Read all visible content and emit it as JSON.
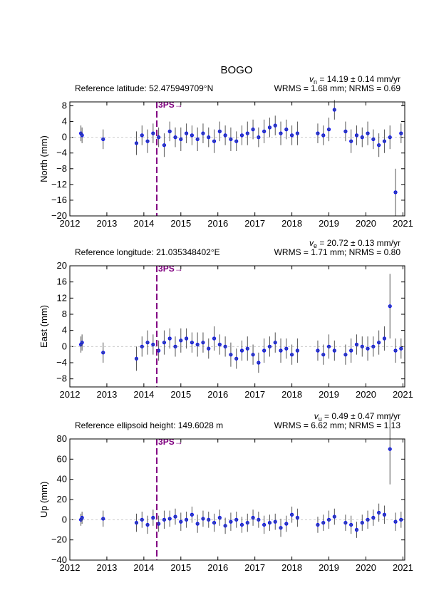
{
  "chart_data": [
    {
      "type": "errorbar",
      "title": "BOGO",
      "velocity": {
        "symbol": "v",
        "subscript": "n",
        "text": " = 14.19 ± 0.14 mm/yr"
      },
      "reference": "Reference latitude: 52.475949709°N",
      "stats": "WRMS = 1.68 mm; NRMS = 0.69",
      "ylabel": "North (mm)",
      "break": {
        "x": 2014.35,
        "label": "3PS→"
      },
      "zero_line": true,
      "xlim": [
        2012,
        2021.05
      ],
      "xticks": [
        2012,
        2013,
        2014,
        2015,
        2016,
        2017,
        2018,
        2019,
        2020,
        2021
      ],
      "ylim": [
        -20,
        9
      ],
      "yticks": [
        8,
        4,
        0,
        {
          "value": -4,
          "label": "−4"
        },
        {
          "value": -8,
          "label": "−8"
        },
        {
          "value": -12,
          "label": "−12"
        },
        {
          "value": -16,
          "label": "−16"
        },
        {
          "value": -20,
          "label": "−20"
        }
      ],
      "series": [
        {
          "color": "#0000ff",
          "error_color": "#555555",
          "x": [
            2012.3,
            2012.33,
            2012.9,
            2013.8,
            2013.95,
            2014.1,
            2014.25,
            2014.4,
            2014.55,
            2014.7,
            2014.85,
            2015.0,
            2015.15,
            2015.3,
            2015.45,
            2015.6,
            2015.75,
            2015.9,
            2016.05,
            2016.2,
            2016.35,
            2016.5,
            2016.65,
            2016.8,
            2016.95,
            2017.1,
            2017.25,
            2017.4,
            2017.55,
            2017.7,
            2017.85,
            2018.0,
            2018.15,
            2018.7,
            2018.85,
            2019.0,
            2019.15,
            2019.45,
            2019.6,
            2019.75,
            2019.9,
            2020.05,
            2020.2,
            2020.35,
            2020.5,
            2020.65,
            2020.8,
            2020.95
          ],
          "values": [
            1,
            0.5,
            -0.5,
            -1.5,
            0.5,
            -1,
            1,
            0,
            -2,
            1.5,
            0,
            -0.5,
            1,
            0.5,
            -0.5,
            1,
            0,
            -1,
            1.5,
            0.5,
            -0.5,
            -1,
            0.5,
            1,
            2,
            0,
            1.5,
            2.5,
            3,
            1,
            2,
            0.5,
            1,
            1,
            0.5,
            2,
            7,
            1.5,
            -1,
            0.5,
            0,
            1,
            -0.5,
            -2,
            -1,
            0,
            -14,
            1
          ],
          "errors": [
            2,
            2,
            2.5,
            3,
            2.5,
            3,
            2.5,
            2.5,
            3,
            2.5,
            2.5,
            3,
            2.5,
            2.5,
            3,
            2.5,
            2.5,
            3,
            2.5,
            2.5,
            3,
            2.5,
            2.5,
            3,
            2.5,
            2.5,
            3,
            2.5,
            2.5,
            3,
            2.5,
            2.5,
            3,
            2.5,
            2.5,
            3,
            2.5,
            2.5,
            3,
            2.5,
            2.5,
            3,
            2.5,
            3,
            3,
            3,
            6,
            2.5
          ]
        }
      ]
    },
    {
      "type": "errorbar",
      "velocity": {
        "symbol": "v",
        "subscript": "e",
        "text": " = 20.72 ± 0.13 mm/yr"
      },
      "reference": "Reference longitude: 21.035348402°E",
      "stats": "WRMS = 1.71 mm; NRMS = 0.80",
      "ylabel": "East (mm)",
      "break": {
        "x": 2014.35,
        "label": "3PS→"
      },
      "zero_line": true,
      "xlim": [
        2012,
        2021.05
      ],
      "xticks": [
        2012,
        2013,
        2014,
        2015,
        2016,
        2017,
        2018,
        2019,
        2020,
        2021
      ],
      "ylim": [
        -10,
        20
      ],
      "yticks": [
        20,
        16,
        12,
        8,
        4,
        0,
        {
          "value": -4,
          "label": "−4"
        },
        {
          "value": -8,
          "label": "−8"
        }
      ],
      "series": [
        {
          "color": "#0000ff",
          "error_color": "#555555",
          "x": [
            2012.3,
            2012.33,
            2012.9,
            2013.8,
            2013.95,
            2014.1,
            2014.25,
            2014.4,
            2014.55,
            2014.7,
            2014.85,
            2015.0,
            2015.15,
            2015.3,
            2015.45,
            2015.6,
            2015.75,
            2015.9,
            2016.05,
            2016.2,
            2016.35,
            2016.5,
            2016.65,
            2016.8,
            2016.95,
            2017.1,
            2017.25,
            2017.4,
            2017.55,
            2017.7,
            2017.85,
            2018.0,
            2018.15,
            2018.7,
            2018.85,
            2019.0,
            2019.15,
            2019.45,
            2019.6,
            2019.75,
            2019.9,
            2020.05,
            2020.2,
            2020.35,
            2020.5,
            2020.65,
            2020.8,
            2020.95
          ],
          "values": [
            0.5,
            1,
            -1.5,
            -3,
            0,
            1,
            0.5,
            -1,
            1,
            2,
            0,
            1.5,
            2,
            1,
            0.5,
            1,
            -0.5,
            2,
            0.5,
            0,
            -2,
            -3,
            -1,
            -0.5,
            -2,
            -4,
            -1,
            0,
            1,
            -1,
            -0.5,
            -2,
            -1,
            -1,
            -2,
            0,
            -1,
            -2,
            -1,
            0.5,
            0,
            -0.5,
            0,
            1,
            2,
            10,
            -1,
            -0.5
          ],
          "errors": [
            2,
            2,
            2.5,
            3,
            2.5,
            3,
            2.5,
            2.5,
            3,
            2.5,
            2.5,
            3,
            2.5,
            2.5,
            3,
            2.5,
            2.5,
            3,
            2.5,
            2.5,
            3,
            2.5,
            2.5,
            3,
            2.5,
            2.5,
            3,
            2.5,
            2.5,
            3,
            2.5,
            2.5,
            3,
            2.5,
            2.5,
            3,
            2.5,
            2.5,
            3,
            2.5,
            2.5,
            3,
            2.5,
            3,
            3,
            8,
            3,
            2.5
          ]
        }
      ]
    },
    {
      "type": "errorbar",
      "velocity": {
        "symbol": "v",
        "subscript": "u",
        "text": " = 0.49 ± 0.47 mm/yr"
      },
      "reference": "Reference ellipsoid height: 149.6028 m",
      "stats": "WRMS = 6.62 mm; NRMS = 1.13",
      "ylabel": "Up (mm)",
      "break": {
        "x": 2014.35,
        "label": "3PS→"
      },
      "zero_line": true,
      "xlim": [
        2012,
        2021.05
      ],
      "xticks": [
        2012,
        2013,
        2014,
        2015,
        2016,
        2017,
        2018,
        2019,
        2020,
        2021
      ],
      "ylim": [
        -40,
        80
      ],
      "yticks": [
        80,
        60,
        40,
        20,
        0,
        {
          "value": -20,
          "label": "−20"
        },
        {
          "value": -40,
          "label": "−40"
        }
      ],
      "series": [
        {
          "color": "#0000ff",
          "error_color": "#555555",
          "x": [
            2012.3,
            2012.33,
            2012.9,
            2013.8,
            2013.95,
            2014.1,
            2014.25,
            2014.4,
            2014.55,
            2014.7,
            2014.85,
            2015.0,
            2015.15,
            2015.3,
            2015.45,
            2015.6,
            2015.75,
            2015.9,
            2016.05,
            2016.2,
            2016.35,
            2016.5,
            2016.65,
            2016.8,
            2016.95,
            2017.1,
            2017.25,
            2017.4,
            2017.55,
            2017.7,
            2017.85,
            2018.0,
            2018.15,
            2018.7,
            2018.85,
            2019.0,
            2019.15,
            2019.45,
            2019.6,
            2019.75,
            2019.9,
            2020.05,
            2020.2,
            2020.35,
            2020.5,
            2020.65,
            2020.8,
            2020.95
          ],
          "values": [
            0,
            2,
            1,
            -3,
            0,
            -5,
            2,
            -4,
            0,
            1,
            3,
            -2,
            0,
            5,
            -4,
            1,
            0,
            -3,
            2,
            -6,
            -2,
            0,
            -5,
            -3,
            2,
            0,
            -5,
            -3,
            -2,
            -8,
            -4,
            5,
            2,
            -5,
            -3,
            0,
            3,
            -3,
            -5,
            -10,
            -3,
            0,
            2,
            7,
            5,
            70,
            -2,
            0
          ],
          "errors": [
            6,
            6,
            8,
            9,
            8,
            9,
            8,
            8,
            9,
            8,
            8,
            9,
            8,
            8,
            9,
            8,
            8,
            9,
            8,
            8,
            9,
            8,
            8,
            9,
            8,
            8,
            9,
            8,
            8,
            9,
            8,
            8,
            9,
            8,
            8,
            9,
            8,
            8,
            9,
            8,
            8,
            9,
            8,
            9,
            9,
            35,
            9,
            8
          ]
        }
      ]
    }
  ]
}
